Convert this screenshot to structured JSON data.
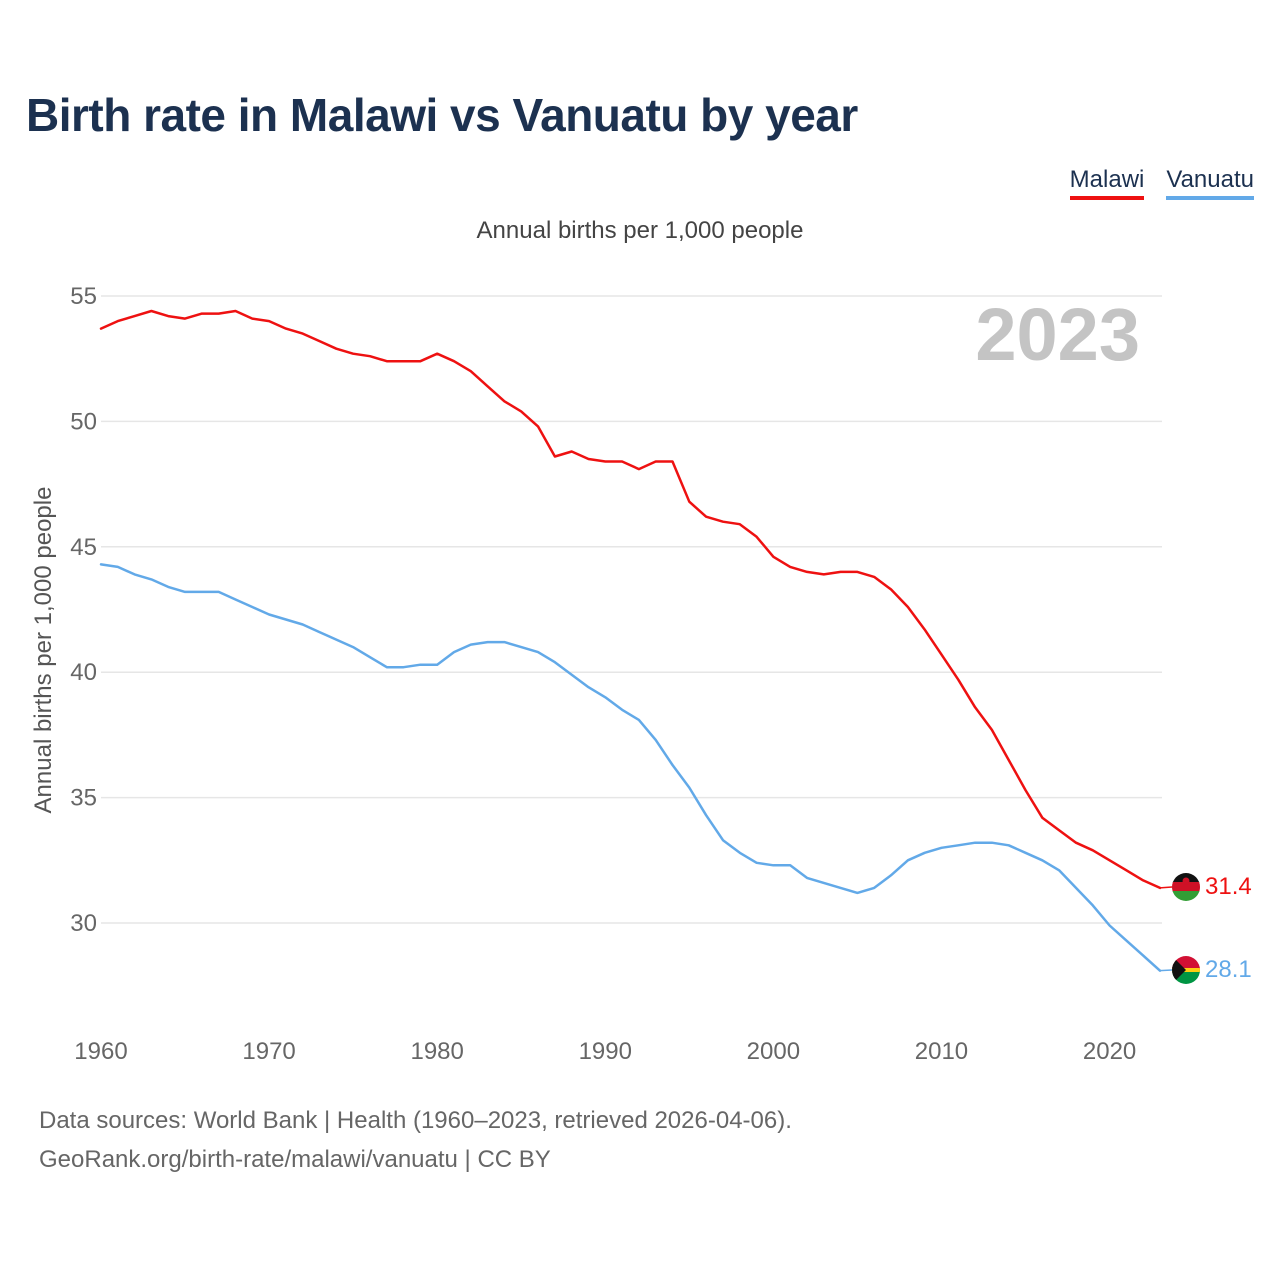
{
  "title": "Birth rate in Malawi vs Vanuatu by year",
  "subtitle": "Annual births per 1,000 people",
  "year_label": "2023",
  "legend": [
    {
      "name": "Malawi",
      "color": "#ee1111"
    },
    {
      "name": "Vanuatu",
      "color": "#62a9e8"
    }
  ],
  "footer": {
    "source": "Data sources: World Bank | Health (1960–2023, retrieved 2026-04-06).",
    "url": "GeoRank.org/birth-rate/malawi/vanuatu | CC BY"
  },
  "chart_data": {
    "type": "line",
    "title": "Birth rate in Malawi vs Vanuatu by year",
    "xlabel": "",
    "ylabel": "Annual births per 1,000 people",
    "xlim": [
      1960,
      2023
    ],
    "ylim": [
      27.5,
      55
    ],
    "xticks": [
      1960,
      1970,
      1980,
      1990,
      2000,
      2010,
      2020
    ],
    "yticks": [
      30,
      35,
      40,
      45,
      50,
      55
    ],
    "grid": true,
    "x": [
      1960,
      1961,
      1962,
      1963,
      1964,
      1965,
      1966,
      1967,
      1968,
      1969,
      1970,
      1971,
      1972,
      1973,
      1974,
      1975,
      1976,
      1977,
      1978,
      1979,
      1980,
      1981,
      1982,
      1983,
      1984,
      1985,
      1986,
      1987,
      1988,
      1989,
      1990,
      1991,
      1992,
      1993,
      1994,
      1995,
      1996,
      1997,
      1998,
      1999,
      2000,
      2001,
      2002,
      2003,
      2004,
      2005,
      2006,
      2007,
      2008,
      2009,
      2010,
      2011,
      2012,
      2013,
      2014,
      2015,
      2016,
      2017,
      2018,
      2019,
      2020,
      2021,
      2022,
      2023
    ],
    "series": [
      {
        "name": "Malawi",
        "color": "#ee1111",
        "end_label": "31.4",
        "values": [
          53.7,
          54.0,
          54.2,
          54.4,
          54.2,
          54.1,
          54.3,
          54.3,
          54.4,
          54.1,
          54.0,
          53.7,
          53.5,
          53.2,
          52.9,
          52.7,
          52.6,
          52.4,
          52.4,
          52.4,
          52.7,
          52.4,
          52.0,
          51.4,
          50.8,
          50.4,
          49.8,
          48.6,
          48.8,
          48.5,
          48.4,
          48.4,
          48.1,
          48.4,
          48.4,
          46.8,
          46.2,
          46.0,
          45.9,
          45.4,
          44.6,
          44.2,
          44.0,
          43.9,
          44.0,
          44.0,
          43.8,
          43.3,
          42.6,
          41.7,
          40.7,
          39.7,
          38.6,
          37.7,
          36.5,
          35.3,
          34.2,
          33.7,
          33.2,
          32.9,
          32.5,
          32.1,
          31.7,
          31.4
        ]
      },
      {
        "name": "Vanuatu",
        "color": "#62a9e8",
        "end_label": "28.1",
        "values": [
          44.3,
          44.2,
          43.9,
          43.7,
          43.4,
          43.2,
          43.2,
          43.2,
          42.9,
          42.6,
          42.3,
          42.1,
          41.9,
          41.6,
          41.3,
          41.0,
          40.6,
          40.2,
          40.2,
          40.3,
          40.3,
          40.8,
          41.1,
          41.2,
          41.2,
          41.0,
          40.8,
          40.4,
          39.9,
          39.4,
          39.0,
          38.5,
          38.1,
          37.3,
          36.3,
          35.4,
          34.3,
          33.3,
          32.8,
          32.4,
          32.3,
          32.3,
          31.8,
          31.6,
          31.4,
          31.2,
          31.4,
          31.9,
          32.5,
          32.8,
          33.0,
          33.1,
          33.2,
          33.2,
          33.1,
          32.8,
          32.5,
          32.1,
          31.4,
          30.7,
          29.9,
          29.3,
          28.7,
          28.1
        ]
      }
    ]
  }
}
